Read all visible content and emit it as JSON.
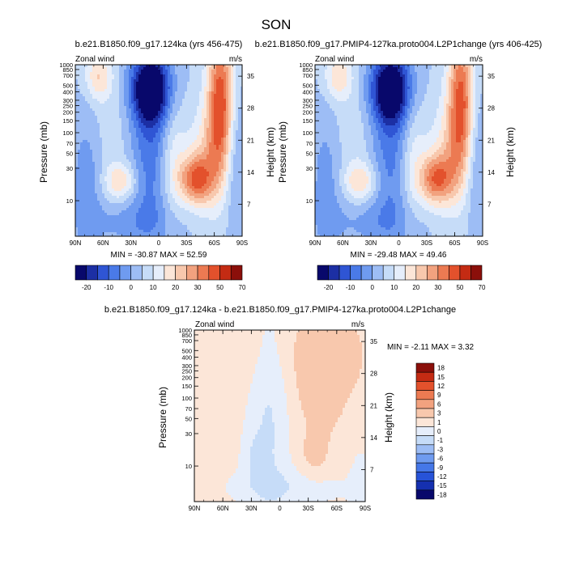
{
  "figure_title": "SON",
  "colors": {
    "top_levels": [
      "#08086b",
      "#1c2fa4",
      "#2f55d4",
      "#4a7ae8",
      "#6f9bf0",
      "#9dbdf5",
      "#c6dcf8",
      "#e6eefb",
      "#fce6d8",
      "#f8c8ad",
      "#f2a27f",
      "#ec7a52",
      "#e3512c",
      "#c42b13",
      "#8b0f0a"
    ],
    "diff_levels": [
      "#08086b",
      "#1530b0",
      "#2753d8",
      "#4577e8",
      "#6f9bf0",
      "#9dbdf5",
      "#c6dcf8",
      "#e6eefb",
      "#fce6d8",
      "#f8c8ad",
      "#f2a27f",
      "#ec7a52",
      "#e3512c",
      "#c42b13",
      "#8b0f0a"
    ]
  },
  "panels": {
    "left": {
      "title": "b.e21.B1850.f09_g17.124ka (yrs 456-475)",
      "corner_left": "Zonal wind",
      "corner_right": "m/s",
      "ylabel": "Pressure (mb)",
      "ylabel_right": "Height (km)",
      "minmax": "MIN = -30.87  MAX =  52.59"
    },
    "right": {
      "title": "b.e21.B1850.f09_g17.PMIP4-127ka.proto004.L2P1change (yrs 406-425)",
      "corner_left": "Zonal wind",
      "corner_right": "m/s",
      "ylabel": "Pressure (mb)",
      "ylabel_right": "Height (km)",
      "minmax": "MIN = -29.48  MAX =  49.46"
    },
    "diff": {
      "title": "b.e21.B1850.f09_g17.124ka - b.e21.B1850.f09_g17.PMIP4-127ka.proto004.L2P1change",
      "corner_left": "Zonal wind",
      "corner_right": "m/s",
      "ylabel": "Pressure (mb)",
      "ylabel_right": "Height (km)",
      "minmax": "MIN =  -2.11  MAX =   3.32"
    }
  },
  "chart_data": [
    {
      "type": "heatmap",
      "title": "b.e21.B1850.f09_g17.124ka (yrs 456-475)",
      "xlabel": "",
      "ylabel": "Pressure (mb)",
      "x_ticks": [
        "90N",
        "60N",
        "30N",
        "0",
        "30S",
        "60S",
        "90S"
      ],
      "y_ticks": [
        "10",
        "30",
        "50",
        "70",
        "100",
        "150",
        "200",
        "250",
        "300",
        "400",
        "500",
        "700",
        "850",
        "1000"
      ],
      "y_right_label": "Height (km)",
      "y_right_ticks": [
        "35",
        "28",
        "21",
        "14",
        "7"
      ],
      "colorbar_ticks": [
        "-20",
        "-10",
        "0",
        "10",
        "20",
        "30",
        "50",
        "70"
      ],
      "min": -30.87,
      "max": 52.59,
      "units": "m/s"
    },
    {
      "type": "heatmap",
      "title": "b.e21.B1850.f09_g17.PMIP4-127ka.proto004.L2P1change (yrs 406-425)",
      "xlabel": "",
      "ylabel": "Pressure (mb)",
      "x_ticks": [
        "90N",
        "60N",
        "30N",
        "0",
        "30S",
        "60S",
        "90S"
      ],
      "y_ticks": [
        "10",
        "30",
        "50",
        "70",
        "100",
        "150",
        "200",
        "250",
        "300",
        "400",
        "500",
        "700",
        "850",
        "1000"
      ],
      "y_right_label": "Height (km)",
      "y_right_ticks": [
        "35",
        "28",
        "21",
        "14",
        "7"
      ],
      "colorbar_ticks": [
        "-20",
        "-10",
        "0",
        "10",
        "20",
        "30",
        "50",
        "70"
      ],
      "min": -29.48,
      "max": 49.46,
      "units": "m/s"
    },
    {
      "type": "heatmap",
      "title": "b.e21.B1850.f09_g17.124ka - b.e21.B1850.f09_g17.PMIP4-127ka.proto004.L2P1change",
      "xlabel": "",
      "ylabel": "Pressure (mb)",
      "x_ticks": [
        "90N",
        "60N",
        "30N",
        "0",
        "30S",
        "60S",
        "90S"
      ],
      "y_ticks": [
        "10",
        "30",
        "50",
        "70",
        "100",
        "150",
        "200",
        "250",
        "300",
        "400",
        "500",
        "700",
        "850",
        "1000"
      ],
      "y_right_label": "Height (km)",
      "y_right_ticks": [
        "35",
        "28",
        "21",
        "14",
        "7"
      ],
      "colorbar_ticks": [
        "18",
        "15",
        "12",
        "9",
        "6",
        "3",
        "1",
        "0",
        "-1",
        "-3",
        "-6",
        "-9",
        "-12",
        "-15",
        "-18"
      ],
      "min": -2.11,
      "max": 3.32,
      "units": "m/s"
    }
  ]
}
